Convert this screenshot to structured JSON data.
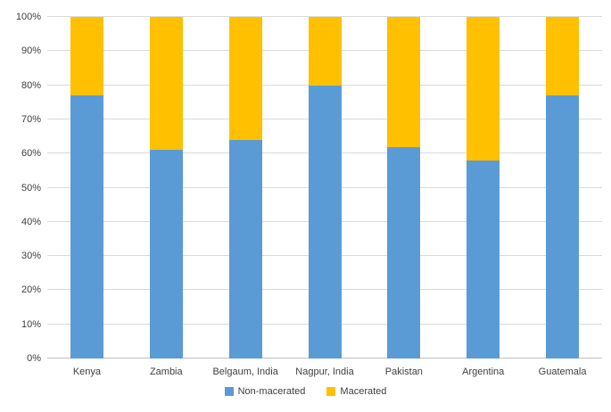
{
  "chart_data": {
    "type": "bar",
    "subtype": "stacked-100-percent",
    "categories": [
      "Kenya",
      "Zambia",
      "Belgaum, India",
      "Nagpur, India",
      "Pakistan",
      "Argentina",
      "Guatemala"
    ],
    "series": [
      {
        "name": "Non-macerated",
        "values": [
          77,
          61,
          64,
          80,
          62,
          58,
          77
        ],
        "color": "#5b9bd5"
      },
      {
        "name": "Macerated",
        "values": [
          23,
          39,
          36,
          20,
          38,
          42,
          23
        ],
        "color": "#ffc000"
      }
    ],
    "title": "",
    "xlabel": "",
    "ylabel": "",
    "ylim": [
      0,
      100
    ],
    "y_ticks": [
      "0%",
      "10%",
      "20%",
      "30%",
      "40%",
      "50%",
      "60%",
      "70%",
      "80%",
      "90%",
      "100%"
    ],
    "grid": true,
    "gridline_color": "#d9d9d9",
    "axis_line_color": "#bfbfbf",
    "text_color": "#404040",
    "legend_position": "bottom",
    "legend": [
      {
        "label": "Non-macerated",
        "color": "#5b9bd5"
      },
      {
        "label": "Macerated",
        "color": "#ffc000"
      }
    ]
  }
}
